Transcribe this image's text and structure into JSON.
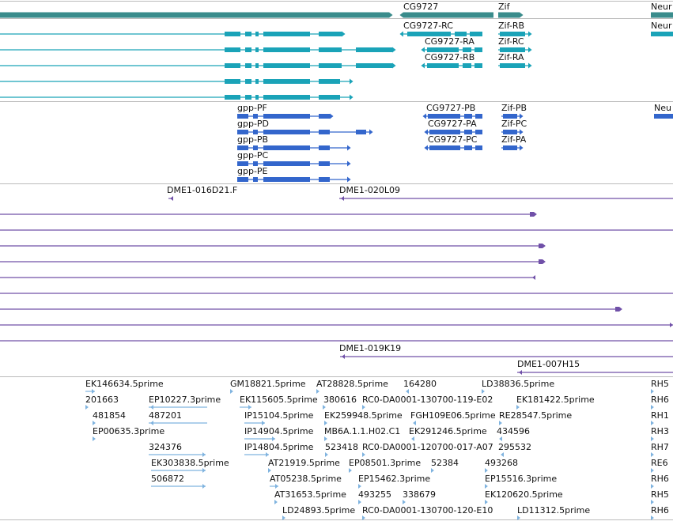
{
  "colors": {
    "gene": "#3a8c8c",
    "transcript": "#1aa3b8",
    "protein": "#3366cc",
    "clone": "#7050a8",
    "est": "#7fb3df",
    "separator": "#bbbbbb"
  },
  "genes": [
    {
      "label": "",
      "dir": "right"
    },
    {
      "label": "CG9727",
      "dir": "left"
    },
    {
      "label": "Zif",
      "dir": "right"
    },
    {
      "label": "Neur",
      "dir": "right"
    }
  ],
  "transcripts": [
    {
      "label": "",
      "structure": "exons"
    },
    {
      "label": "",
      "structure": "exons"
    },
    {
      "label": "",
      "structure": "exons"
    },
    {
      "label": "",
      "structure": "exons"
    },
    {
      "label": "",
      "structure": "exons"
    },
    {
      "label": "CG9727-RC",
      "structure": "exons"
    },
    {
      "label": "CG9727-RA",
      "structure": "exons"
    },
    {
      "label": "CG9727-RB",
      "structure": "exons"
    },
    {
      "label": "Zif-RB",
      "structure": "exons"
    },
    {
      "label": "Zif-RC",
      "structure": "exons"
    },
    {
      "label": "Zif-RA",
      "structure": "exons"
    },
    {
      "label": "Neur",
      "structure": "block"
    }
  ],
  "proteins": [
    {
      "label": "gpp-PF"
    },
    {
      "label": "gpp-PD"
    },
    {
      "label": "gpp-PB"
    },
    {
      "label": "gpp-PC"
    },
    {
      "label": "gpp-PE"
    },
    {
      "label": "CG9727-PB"
    },
    {
      "label": "CG9727-PA"
    },
    {
      "label": "CG9727-PC"
    },
    {
      "label": "Zif-PB"
    },
    {
      "label": "Zif-PC"
    },
    {
      "label": "Zif-PA"
    },
    {
      "label": "Neu"
    }
  ],
  "clones": [
    {
      "label": "DME1-016D21.F"
    },
    {
      "label": "DME1-020L09"
    },
    {
      "label": ""
    },
    {
      "label": ""
    },
    {
      "label": ""
    },
    {
      "label": ""
    },
    {
      "label": ""
    },
    {
      "label": ""
    },
    {
      "label": ""
    },
    {
      "label": ""
    },
    {
      "label": ""
    },
    {
      "label": "DME1-019K19"
    },
    {
      "label": "DME1-007H15"
    }
  ],
  "ests": [
    {
      "label": "EK146634.5prime"
    },
    {
      "label": "201663"
    },
    {
      "label": "481854"
    },
    {
      "label": "EP00635.3prime"
    },
    {
      "label": "EP10227.3prime"
    },
    {
      "label": "487201"
    },
    {
      "label": "324376"
    },
    {
      "label": "EK303838.5prime"
    },
    {
      "label": "506872"
    },
    {
      "label": "GM18821.5prime"
    },
    {
      "label": "EK115605.5prime"
    },
    {
      "label": "IP15104.5prime"
    },
    {
      "label": "IP14904.5prime"
    },
    {
      "label": "IP14804.5prime"
    },
    {
      "label": "AT21919.5prime"
    },
    {
      "label": "AT05238.5prime"
    },
    {
      "label": "AT31653.5prime"
    },
    {
      "label": "LD24893.5prime"
    },
    {
      "label": "AT28828.5prime"
    },
    {
      "label": "380616"
    },
    {
      "label": "EK259948.5prime"
    },
    {
      "label": "MB6A.1.1.H02.C1"
    },
    {
      "label": "523418"
    },
    {
      "label": "EP08501.3prime"
    },
    {
      "label": "EP15462.3prime"
    },
    {
      "label": "493255"
    },
    {
      "label": "164280"
    },
    {
      "label": "RC0-DA0001-130700-119-E02"
    },
    {
      "label": "FGH109E06.5prime"
    },
    {
      "label": "EK291246.5prime"
    },
    {
      "label": "RC0-DA0001-120700-017-A07"
    },
    {
      "label": "52384"
    },
    {
      "label": "338679"
    },
    {
      "label": "RC0-DA0001-130700-120-E10"
    },
    {
      "label": "LD38836.5prime"
    },
    {
      "label": "EK181422.5prime"
    },
    {
      "label": "RE28547.5prime"
    },
    {
      "label": "434596"
    },
    {
      "label": "295532"
    },
    {
      "label": "493268"
    },
    {
      "label": "EP15516.3prime"
    },
    {
      "label": "EK120620.5prime"
    },
    {
      "label": "LD11312.5prime"
    },
    {
      "label": "RH5"
    },
    {
      "label": "RH6"
    },
    {
      "label": "RH1"
    },
    {
      "label": "RH3"
    },
    {
      "label": "RH7"
    },
    {
      "label": "RE6"
    },
    {
      "label": "RH6"
    },
    {
      "label": "RH5"
    },
    {
      "label": "RH6"
    }
  ]
}
